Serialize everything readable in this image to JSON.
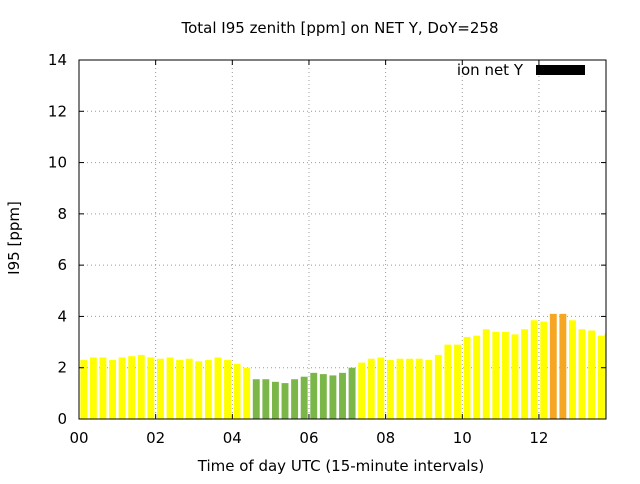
{
  "chart_data": {
    "type": "bar",
    "title": "Total I95 zenith [ppm] on NET Y, DoY=258",
    "xlabel": "Time of day UTC (15-minute intervals)",
    "ylabel": "I95 [ppm]",
    "legend": {
      "label": "ion net Y",
      "placement": "top-right",
      "color": "#000000"
    },
    "xlim": [
      0,
      13.75
    ],
    "ylim": [
      0,
      14
    ],
    "x_ticks": [
      {
        "value": 0,
        "label": "00"
      },
      {
        "value": 2,
        "label": "02"
      },
      {
        "value": 4,
        "label": "04"
      },
      {
        "value": 6,
        "label": "06"
      },
      {
        "value": 8,
        "label": "08"
      },
      {
        "value": 10,
        "label": "10"
      },
      {
        "value": 12,
        "label": "12"
      }
    ],
    "y_ticks": [
      {
        "value": 0,
        "label": "0"
      },
      {
        "value": 2,
        "label": "2"
      },
      {
        "value": 4,
        "label": "4"
      },
      {
        "value": 6,
        "label": "6"
      },
      {
        "value": 8,
        "label": "8"
      },
      {
        "value": 10,
        "label": "10"
      },
      {
        "value": 12,
        "label": "12"
      },
      {
        "value": 14,
        "label": "14"
      }
    ],
    "grid": true,
    "interval_hours": 0.25,
    "colors": {
      "yellow": "#ffff00",
      "green": "#7ab648",
      "orange": "#f5a623",
      "grid": "#999999",
      "axis": "#000000"
    },
    "x": [
      0,
      0.25,
      0.5,
      0.75,
      1,
      1.25,
      1.5,
      1.75,
      2,
      2.25,
      2.5,
      2.75,
      3,
      3.25,
      3.5,
      3.75,
      4,
      4.25,
      4.5,
      4.75,
      5,
      5.25,
      5.5,
      5.75,
      6,
      6.25,
      6.5,
      6.75,
      7,
      7.25,
      7.5,
      7.75,
      8,
      8.25,
      8.5,
      8.75,
      9,
      9.25,
      9.5,
      9.75,
      10,
      10.25,
      10.5,
      10.75,
      11,
      11.25,
      11.5,
      11.75,
      12,
      12.25,
      12.5,
      12.75,
      13,
      13.25,
      13.5
    ],
    "values": [
      2.3,
      2.4,
      2.4,
      2.3,
      2.4,
      2.45,
      2.5,
      2.4,
      2.35,
      2.4,
      2.3,
      2.35,
      2.25,
      2.3,
      2.4,
      2.3,
      2.15,
      2.0,
      1.55,
      1.55,
      1.45,
      1.4,
      1.55,
      1.65,
      1.8,
      1.75,
      1.7,
      1.8,
      2.0,
      2.2,
      2.35,
      2.4,
      2.3,
      2.35,
      2.35,
      2.35,
      2.3,
      2.5,
      2.9,
      2.9,
      3.2,
      3.25,
      3.5,
      3.4,
      3.4,
      3.3,
      3.5,
      3.85,
      3.8,
      4.1,
      4.1,
      3.85,
      3.5,
      3.45,
      3.25
    ],
    "bar_colors": [
      "yellow",
      "yellow",
      "yellow",
      "yellow",
      "yellow",
      "yellow",
      "yellow",
      "yellow",
      "yellow",
      "yellow",
      "yellow",
      "yellow",
      "yellow",
      "yellow",
      "yellow",
      "yellow",
      "yellow",
      "yellow",
      "green",
      "green",
      "green",
      "green",
      "green",
      "green",
      "green",
      "green",
      "green",
      "green",
      "green",
      "yellow",
      "yellow",
      "yellow",
      "yellow",
      "yellow",
      "yellow",
      "yellow",
      "yellow",
      "yellow",
      "yellow",
      "yellow",
      "yellow",
      "yellow",
      "yellow",
      "yellow",
      "yellow",
      "yellow",
      "yellow",
      "yellow",
      "yellow",
      "orange",
      "orange",
      "yellow",
      "yellow",
      "yellow",
      "yellow"
    ],
    "extra_bar": {
      "x": 13.75,
      "value": 3.35,
      "color": "yellow"
    }
  }
}
